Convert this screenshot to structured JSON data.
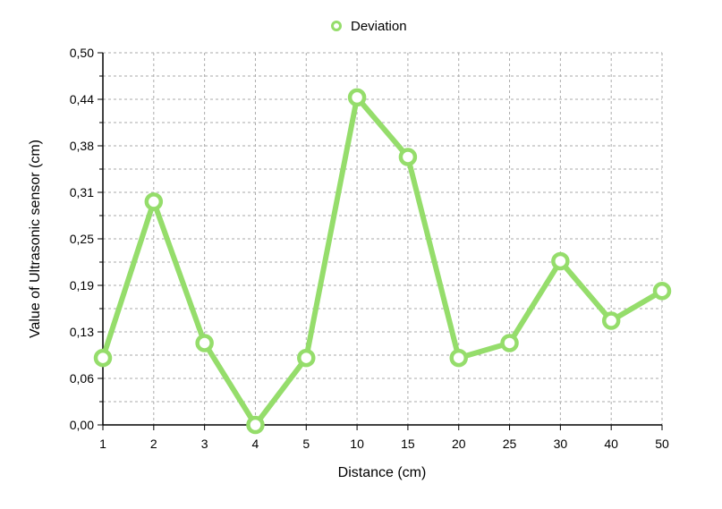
{
  "chart_data": {
    "type": "line",
    "categories": [
      "1",
      "2",
      "3",
      "4",
      "5",
      "10",
      "15",
      "20",
      "25",
      "30",
      "40",
      "50"
    ],
    "series": [
      {
        "name": "Deviation",
        "color": "#95dd6b",
        "values": [
          0.09,
          0.3,
          0.11,
          0.0,
          0.09,
          0.44,
          0.36,
          0.09,
          0.11,
          0.22,
          0.14,
          0.18
        ]
      }
    ],
    "xlabel": "Distance (cm)",
    "ylabel": "Value of Ultrasonic sensor (cm)",
    "ylim": [
      0,
      0.5
    ],
    "yticks": [
      0,
      0.0625,
      0.125,
      0.1875,
      0.25,
      0.3125,
      0.375,
      0.4375,
      0.5
    ],
    "ytick_labels": [
      "0,00",
      "0,06",
      "0,13",
      "0,19",
      "0,25",
      "0,31",
      "0,38",
      "0,44",
      "0,50"
    ],
    "grid": true,
    "legend": "top-center"
  }
}
